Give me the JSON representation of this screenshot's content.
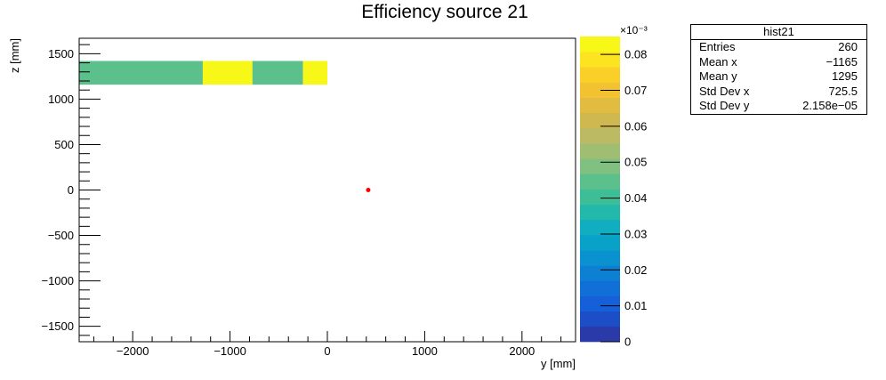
{
  "chart_data": {
    "type": "heatmap",
    "title": "Efficiency source 21",
    "xlabel": "y [mm]",
    "ylabel": "z [mm]",
    "xlim": [
      -2550,
      2550
    ],
    "ylim": [
      -1670,
      1670
    ],
    "x_ticks": [
      -2000,
      -1000,
      0,
      1000,
      2000
    ],
    "x_tick_labels": [
      "−2000",
      "−1000",
      "0",
      "1000",
      "2000"
    ],
    "y_ticks": [
      -1500,
      -1000,
      -500,
      0,
      500,
      1000,
      1500
    ],
    "y_tick_labels": [
      "−1500",
      "−1000",
      "−500",
      "0",
      "500",
      "1000",
      "1500"
    ],
    "cells": [
      {
        "x0": -2550,
        "x1": -1280,
        "y0": 1160,
        "y1": 1420,
        "value": 0.045
      },
      {
        "x0": -1280,
        "x1": -770,
        "y0": 1160,
        "y1": 1420,
        "value": 0.083
      },
      {
        "x0": -770,
        "x1": -250,
        "y0": 1160,
        "y1": 1420,
        "value": 0.045
      },
      {
        "x0": -250,
        "x1": 0,
        "y0": 1160,
        "y1": 1420,
        "value": 0.083
      }
    ],
    "marker": {
      "x": 420,
      "y": 0,
      "color": "#ff0000"
    },
    "colorbar": {
      "range": [
        0,
        0.085
      ],
      "exponent_label": "×10⁻³",
      "ticks": [
        0,
        0.01,
        0.02,
        0.03,
        0.04,
        0.05,
        0.06,
        0.07,
        0.08
      ],
      "tick_labels": [
        "0",
        "0.01",
        "0.02",
        "0.03",
        "0.04",
        "0.05",
        "0.06",
        "0.07",
        "0.08"
      ],
      "colors": [
        "#2a3aa8",
        "#1c4ec8",
        "#1560d8",
        "#1070d8",
        "#0e80d4",
        "#0a92d0",
        "#08a2c8",
        "#10aec0",
        "#22b8aa",
        "#3ebe96",
        "#5cc08c",
        "#80c080",
        "#a0be72",
        "#bcba62",
        "#d0b850",
        "#e2bc40",
        "#f2c230",
        "#fad028",
        "#fce420",
        "#f8f818"
      ]
    },
    "stats": {
      "name": "hist21",
      "rows": [
        {
          "label": "Entries",
          "value": "260"
        },
        {
          "label": "Mean x",
          "value": "−1165"
        },
        {
          "label": "Mean y",
          "value": "1295"
        },
        {
          "label": "Std Dev x",
          "value": "725.5"
        },
        {
          "label": "Std Dev y",
          "value": "2.158e−05"
        }
      ]
    }
  }
}
